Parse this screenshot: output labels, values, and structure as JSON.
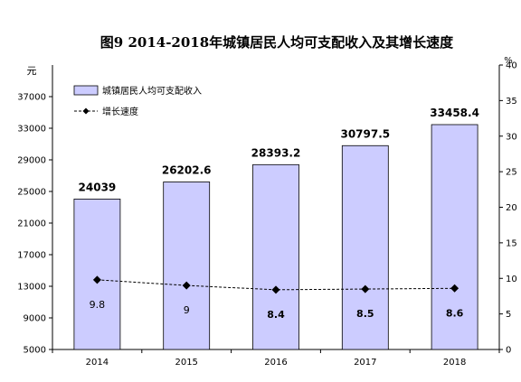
{
  "chart_data": {
    "type": "bar",
    "title": "图9  2014-2018年城镇居民人均可支配收入及其增长速度",
    "categories": [
      "2014",
      "2015",
      "2016",
      "2017",
      "2018"
    ],
    "y_left": {
      "unit_label": "元",
      "min": 5000,
      "max": 41000,
      "ticks": [
        "5000",
        "9000",
        "13000",
        "17000",
        "21000",
        "25000",
        "29000",
        "33000",
        "37000"
      ]
    },
    "y_right": {
      "unit_label": "%",
      "min": 0,
      "max": 40,
      "ticks": [
        "0",
        "5",
        "10",
        "15",
        "20",
        "25",
        "30",
        "35",
        "40"
      ]
    },
    "series": [
      {
        "name": "城镇居民人均可支配收入",
        "kind": "bar",
        "axis": "left",
        "values": [
          24039,
          26202.6,
          28393.2,
          30797.5,
          33458.4
        ],
        "labels": [
          "24039",
          "26202.6",
          "28393.2",
          "30797.5",
          "33458.4"
        ],
        "color": "#ccccff",
        "stroke": "#000000"
      },
      {
        "name": "增长速度",
        "kind": "line",
        "axis": "right",
        "values": [
          9.8,
          9,
          8.4,
          8.5,
          8.6
        ],
        "labels": [
          "9.8",
          "9",
          "8.4",
          "8.5",
          "8.6"
        ],
        "color": "#000000"
      }
    ],
    "legend": {
      "position": "top-left"
    },
    "grid": false
  }
}
